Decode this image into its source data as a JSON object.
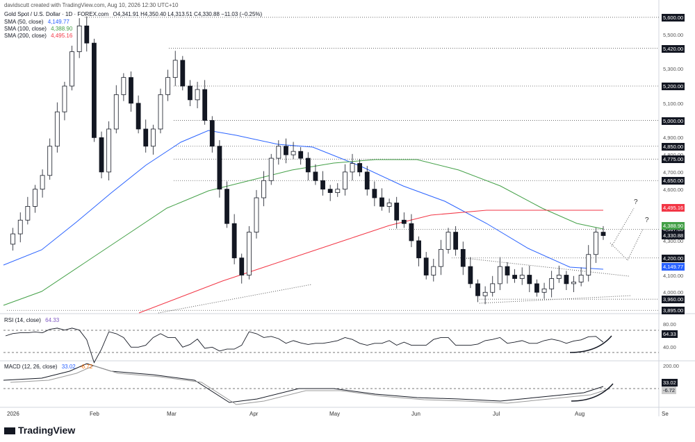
{
  "header": {
    "created": "davidscutt created with TradingView.com, Aug 10, 2026 12:30 UTC+10",
    "symbol": "Gold Spot / U.S. Dollar · 1D · FOREX.com",
    "ohlc": "O4,341.91 H4,350.40 L4,313.51 C4,330.88 −11.03 (−0.25%)",
    "sma50": {
      "label": "SMA (50, close)",
      "value": "4,149.77",
      "color": "#2962ff"
    },
    "sma100": {
      "label": "SMA (100, close)",
      "value": "4,388.90",
      "color": "#43a047"
    },
    "sma200": {
      "label": "SMA (200, close)",
      "value": "4,495.16",
      "color": "#f23645"
    }
  },
  "price_axis": {
    "ticks": [
      "5,500.00",
      "5,300.00",
      "5,100.00",
      "4,900.00",
      "4,800.00",
      "4,700.00",
      "4,600.00",
      "4,500.00",
      "4,400.00",
      "4,300.00",
      "4,100.00",
      "4,000.00"
    ],
    "levels": [
      {
        "value": 5600,
        "text": "5,600.00"
      },
      {
        "value": 5420,
        "text": "5,420.00"
      },
      {
        "value": 5200,
        "text": "5,200.00"
      },
      {
        "value": 5000,
        "text": "5,000.00"
      },
      {
        "value": 4850,
        "text": "4,850.00"
      },
      {
        "value": 4775,
        "text": "4,775.00"
      },
      {
        "value": 4650,
        "text": "4,650.00"
      },
      {
        "value": 4367,
        "text": "4,367.00"
      },
      {
        "value": 4200,
        "text": "4,200.00"
      },
      {
        "value": 3960,
        "text": "3,960.00"
      },
      {
        "value": 3895,
        "text": "3,895.00"
      }
    ],
    "colored": [
      {
        "value": 4495.16,
        "text": "4,495.16",
        "color": "#f23645"
      },
      {
        "value": 4388.9,
        "text": "4,388.90",
        "color": "#43a047"
      },
      {
        "value": 4330.88,
        "text": "4,330.88",
        "color": "#131722"
      },
      {
        "value": 4149.77,
        "text": "4,149.77",
        "color": "#2962ff"
      }
    ]
  },
  "x_axis": [
    "2026",
    "Feb",
    "Mar",
    "Apr",
    "May",
    "Jun",
    "Jul",
    "Aug",
    "Se"
  ],
  "rsi": {
    "label": "RSI (14, close)",
    "value": "64.33",
    "ticks": [
      "80.00",
      "40.00"
    ]
  },
  "macd": {
    "label": "MACD (12, 26, close)",
    "value": "33.02",
    "signal": "-6.72",
    "ticks": [
      "200.00"
    ],
    "values_shown": [
      "33.02",
      "-6.72"
    ]
  },
  "annotations": {
    "q1": "?",
    "q2": "?"
  },
  "logo": "TradingView",
  "chart_data": {
    "type": "candlestick",
    "title": "Gold Spot / U.S. Dollar",
    "timeframe": "1D",
    "x_range": [
      "2026-01-01",
      "2026-09-01"
    ],
    "ylim": [
      3880,
      5620
    ],
    "series": [
      {
        "name": "SMA (50, close)",
        "last": 4149.77
      },
      {
        "name": "SMA (100, close)",
        "last": 4388.9
      },
      {
        "name": "SMA (200, close)",
        "last": 4495.16
      }
    ],
    "last_close": 4330.88,
    "horizontal_levels": [
      5600,
      5420,
      5200,
      5000,
      4850,
      4775,
      4650,
      4367,
      4200,
      3960,
      3895
    ],
    "path": [
      4280,
      4340,
      4420,
      4500,
      4600,
      4680,
      4850,
      5050,
      5200,
      5400,
      5550,
      5450,
      4900,
      4700,
      4950,
      5150,
      5250,
      5100,
      4950,
      4850,
      4950,
      5150,
      5250,
      5350,
      5200,
      5120,
      5180,
      5000,
      4850,
      4600,
      4400,
      4200,
      4100,
      4350,
      4550,
      4650,
      4780,
      4850,
      4800,
      4820,
      4780,
      4700,
      4650,
      4600,
      4580,
      4600,
      4700,
      4750,
      4700,
      4600,
      4550,
      4500,
      4520,
      4420,
      4400,
      4300,
      4200,
      4100,
      4150,
      4250,
      4350,
      4250,
      4150,
      4050,
      3980,
      4000,
      4050,
      4150,
      4100,
      4080,
      4100,
      4050,
      4000,
      4020,
      4080,
      4100,
      4050,
      4060,
      4100,
      4220,
      4350,
      4330
    ]
  }
}
